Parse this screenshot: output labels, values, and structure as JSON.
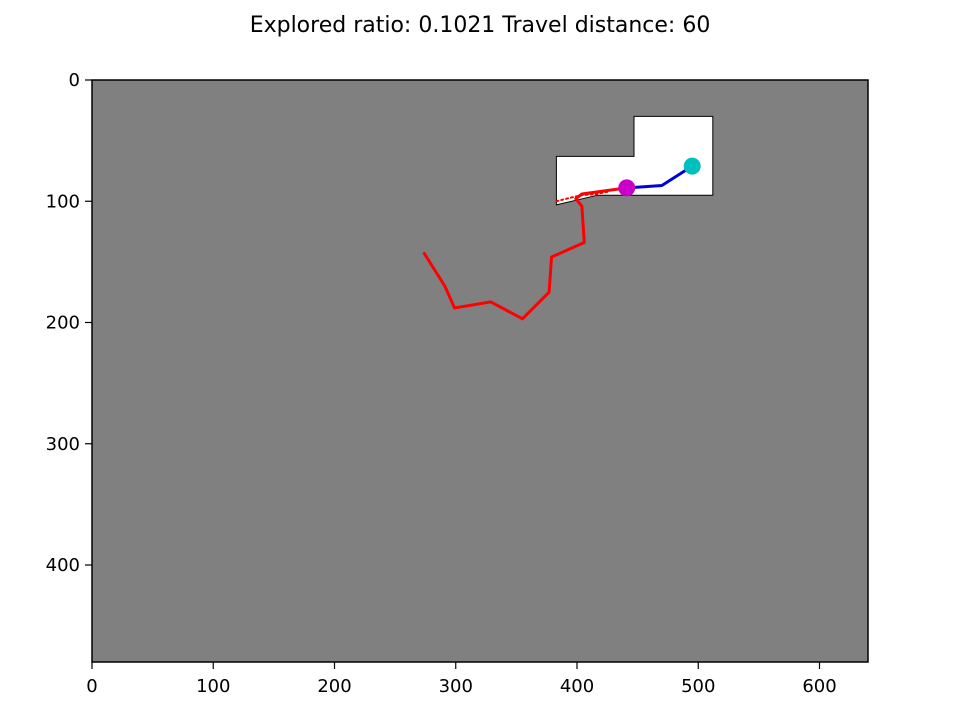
{
  "chart_data": {
    "type": "scatter",
    "title": "Explored ratio: 0.1021  Travel distance: 60",
    "xlim": [
      0,
      640
    ],
    "ylim": [
      480,
      0
    ],
    "x_ticks": [
      0,
      100,
      200,
      300,
      400,
      500,
      600
    ],
    "y_ticks": [
      0,
      100,
      200,
      300,
      400
    ],
    "background_color": "#808080",
    "explored_color": "#ffffff",
    "explored_region": [
      [
        383,
        63
      ],
      [
        447,
        63
      ],
      [
        447,
        30
      ],
      [
        512,
        30
      ],
      [
        512,
        95
      ],
      [
        417,
        95
      ],
      [
        383,
        103
      ]
    ],
    "series": [
      {
        "name": "trajectory",
        "color": "#ff0000",
        "width": 3,
        "points": [
          [
            274,
            143
          ],
          [
            291,
            170
          ],
          [
            299,
            188
          ],
          [
            329,
            183
          ],
          [
            355,
            197
          ],
          [
            377,
            175
          ],
          [
            379,
            146
          ],
          [
            406,
            134
          ],
          [
            404,
            104
          ],
          [
            399,
            98
          ],
          [
            404,
            94
          ],
          [
            441,
            89
          ]
        ]
      },
      {
        "name": "planned-path",
        "color": "#0000dd",
        "width": 3,
        "points": [
          [
            441,
            89
          ],
          [
            470,
            87
          ],
          [
            495,
            71
          ]
        ]
      },
      {
        "name": "frontier",
        "color": "#ff0000",
        "width": 2,
        "dash": "2,3",
        "points": [
          [
            383,
            100
          ],
          [
            395,
            97
          ],
          [
            404,
            95
          ],
          [
            416,
            94
          ],
          [
            426,
            92
          ]
        ]
      }
    ],
    "markers": [
      {
        "name": "current-position",
        "color": "#c800c8",
        "x": 441,
        "y": 89
      },
      {
        "name": "goal",
        "color": "#00bfbf",
        "x": 495,
        "y": 71
      }
    ]
  }
}
